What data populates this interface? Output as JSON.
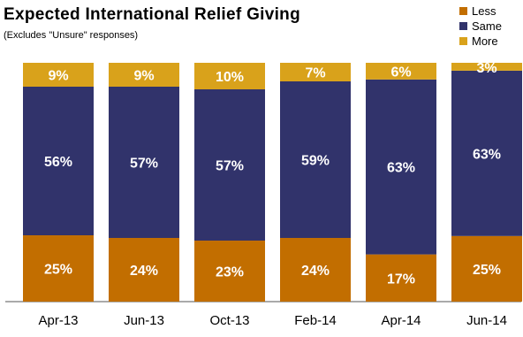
{
  "chart_data": {
    "type": "bar",
    "stacked": true,
    "percent_stacked": true,
    "title": "Expected International Relief Giving",
    "subtitle": "(Excludes \"Unsure\" responses)",
    "categories": [
      "Apr-13",
      "Jun-13",
      "Oct-13",
      "Feb-14",
      "Apr-14",
      "Jun-14"
    ],
    "series": [
      {
        "name": "Less",
        "color": "#C26E00",
        "values": [
          25,
          24,
          23,
          24,
          17,
          25
        ]
      },
      {
        "name": "Same",
        "color": "#31336B",
        "values": [
          56,
          57,
          57,
          59,
          63,
          63
        ]
      },
      {
        "name": "More",
        "color": "#D9A21B",
        "values": [
          9,
          9,
          10,
          7,
          6,
          3
        ]
      }
    ],
    "legend_position": "top-right",
    "legend_order": [
      "Less",
      "Same",
      "More"
    ],
    "grid": false
  }
}
